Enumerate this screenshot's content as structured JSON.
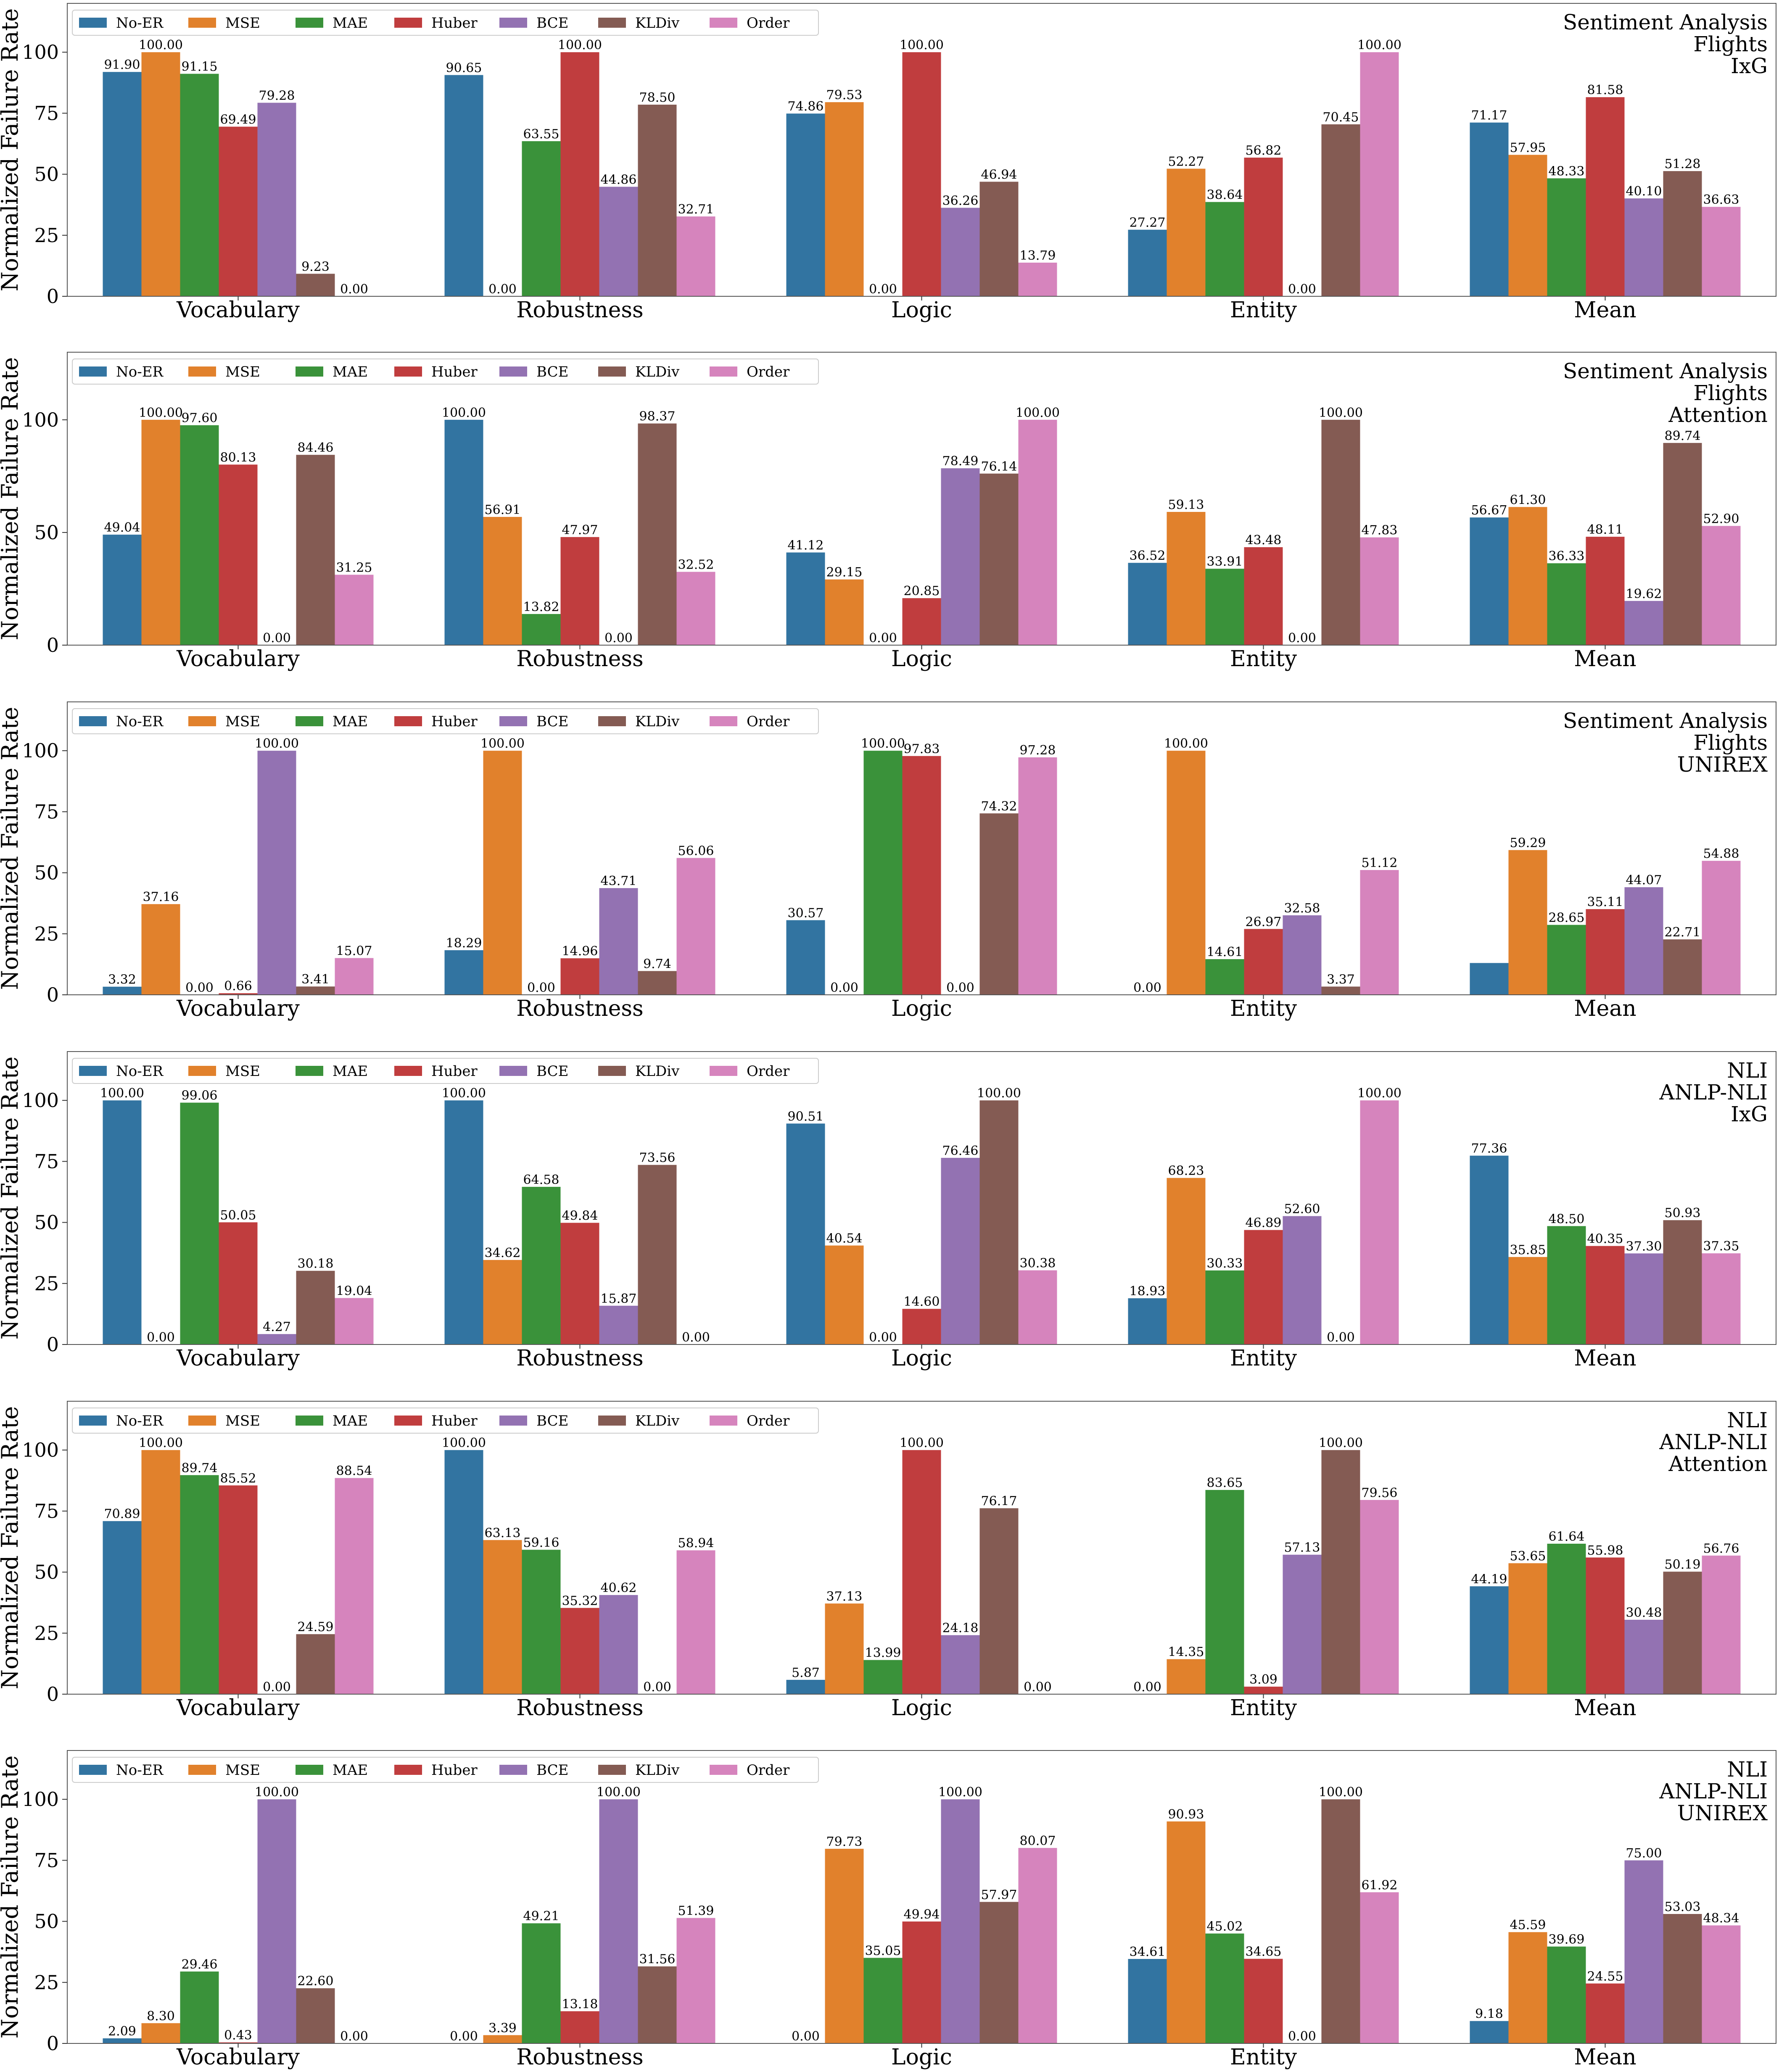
{
  "colors": {
    "No-ER": "#3274a1",
    "MSE": "#e1812c",
    "MAE": "#3a923a",
    "Huber": "#c03d3e",
    "BCE": "#9372b2",
    "KLDiv": "#845b53",
    "Order": "#d684bd"
  },
  "chart_data": [
    {
      "type": "bar",
      "title": [
        "Sentiment Analysis",
        "Flights",
        "IxG"
      ],
      "ylabel": "Normalized Failure Rate",
      "ylim": [
        0,
        120
      ],
      "yticks": [
        0,
        25,
        50,
        75,
        100
      ],
      "legend_position": "top-left",
      "categories": [
        "Vocabulary",
        "Robustness",
        "Logic",
        "Entity",
        "Mean"
      ],
      "series": [
        {
          "name": "No-ER",
          "values": [
            91.9,
            90.65,
            74.86,
            27.27,
            71.17
          ],
          "labels": [
            "91.90",
            "90.65",
            "74.86",
            "27.27",
            "71.17"
          ]
        },
        {
          "name": "MSE",
          "values": [
            100.0,
            0.0,
            79.53,
            52.27,
            57.95
          ],
          "labels": [
            "100.00",
            "0.00",
            "79.53",
            "52.27",
            "57.95"
          ]
        },
        {
          "name": "MAE",
          "values": [
            91.15,
            63.55,
            0.0,
            38.64,
            48.33
          ],
          "labels": [
            "91.15",
            "63.55",
            "0.00",
            "38.64",
            "48.33"
          ]
        },
        {
          "name": "Huber",
          "values": [
            69.49,
            100.0,
            100.0,
            56.82,
            81.58
          ],
          "labels": [
            "69.49",
            "100.00",
            "100.00",
            "56.82",
            "81.58"
          ]
        },
        {
          "name": "BCE",
          "values": [
            79.28,
            44.86,
            36.26,
            0.0,
            40.1
          ],
          "labels": [
            "79.28",
            "44.86",
            "36.26",
            "0.00",
            "40.10"
          ]
        },
        {
          "name": "KLDiv",
          "values": [
            9.23,
            78.5,
            46.94,
            70.45,
            51.28
          ],
          "labels": [
            "9.23",
            "78.50",
            "46.94",
            "70.45",
            "51.28"
          ]
        },
        {
          "name": "Order",
          "values": [
            0.0,
            32.71,
            13.79,
            100.0,
            36.63
          ],
          "labels": [
            "0.00",
            "32.71",
            "13.79",
            "100.00",
            "36.63"
          ]
        }
      ]
    },
    {
      "type": "bar",
      "title": [
        "Sentiment Analysis",
        "Flights",
        "Attention"
      ],
      "ylabel": "Normalized Failure Rate",
      "ylim": [
        0,
        130
      ],
      "yticks": [
        0,
        50,
        100
      ],
      "legend_position": "top-left",
      "categories": [
        "Vocabulary",
        "Robustness",
        "Logic",
        "Entity",
        "Mean"
      ],
      "series": [
        {
          "name": "No-ER",
          "values": [
            49.04,
            100.0,
            41.12,
            36.52,
            56.67
          ],
          "labels": [
            "49.04",
            "100.00",
            "41.12",
            "36.52",
            "56.67"
          ]
        },
        {
          "name": "MSE",
          "values": [
            100.0,
            56.91,
            29.15,
            59.13,
            61.3
          ],
          "labels": [
            "100.00",
            "56.91",
            "29.15",
            "59.13",
            "61.30"
          ]
        },
        {
          "name": "MAE",
          "values": [
            97.6,
            13.82,
            0.0,
            33.91,
            36.33
          ],
          "labels": [
            "97.60",
            "13.82",
            "0.00",
            "33.91",
            "36.33"
          ]
        },
        {
          "name": "Huber",
          "values": [
            80.13,
            47.97,
            20.85,
            43.48,
            48.11
          ],
          "labels": [
            "80.13",
            "47.97",
            "20.85",
            "43.48",
            "48.11"
          ]
        },
        {
          "name": "BCE",
          "values": [
            0.0,
            0.0,
            78.49,
            0.0,
            19.62
          ],
          "labels": [
            "0.00",
            "0.00",
            "78.49",
            "0.00",
            "19.62"
          ]
        },
        {
          "name": "KLDiv",
          "values": [
            84.46,
            98.37,
            76.14,
            100.0,
            89.74
          ],
          "labels": [
            "84.46",
            "98.37",
            "76.14",
            "100.00",
            "89.74"
          ]
        },
        {
          "name": "Order",
          "values": [
            31.25,
            32.52,
            100.0,
            47.83,
            52.9
          ],
          "labels": [
            "31.25",
            "32.52",
            "100.00",
            "47.83",
            "52.90"
          ]
        }
      ]
    },
    {
      "type": "bar",
      "title": [
        "Sentiment Analysis",
        "Flights",
        "UNIREX"
      ],
      "ylabel": "Normalized Failure Rate",
      "ylim": [
        0,
        120
      ],
      "yticks": [
        0,
        25,
        50,
        75,
        100
      ],
      "legend_position": "top-left",
      "categories": [
        "Vocabulary",
        "Robustness",
        "Logic",
        "Entity",
        "Mean"
      ],
      "series": [
        {
          "name": "No-ER",
          "values": [
            3.32,
            18.29,
            30.57,
            0.0,
            13.04
          ],
          "labels": [
            "3.32",
            "18.29",
            "30.57",
            "0.00",
            ""
          ]
        },
        {
          "name": "MSE",
          "values": [
            37.16,
            100.0,
            0.0,
            100.0,
            59.29
          ],
          "labels": [
            "37.16",
            "100.00",
            "0.00",
            "100.00",
            "59.29"
          ]
        },
        {
          "name": "MAE",
          "values": [
            0.0,
            0.0,
            100.0,
            14.61,
            28.65
          ],
          "labels": [
            "0.00",
            "0.00",
            "100.00",
            "14.61",
            "28.65"
          ]
        },
        {
          "name": "Huber",
          "values": [
            0.66,
            14.96,
            97.83,
            26.97,
            35.11
          ],
          "labels": [
            "0.66",
            "14.96",
            "97.83",
            "26.97",
            "35.11"
          ]
        },
        {
          "name": "BCE",
          "values": [
            100.0,
            43.71,
            0.0,
            32.58,
            44.07
          ],
          "labels": [
            "100.00",
            "43.71",
            "0.00",
            "32.58",
            "44.07"
          ]
        },
        {
          "name": "KLDiv",
          "values": [
            3.41,
            9.74,
            74.32,
            3.37,
            22.71
          ],
          "labels": [
            "3.41",
            "9.74",
            "74.32",
            "3.37",
            "22.71"
          ]
        },
        {
          "name": "Order",
          "values": [
            15.07,
            56.06,
            97.28,
            51.12,
            54.88
          ],
          "labels": [
            "15.07",
            "56.06",
            "97.28",
            "51.12",
            "54.88"
          ]
        }
      ]
    },
    {
      "type": "bar",
      "title": [
        "NLI",
        "ANLP-NLI",
        "IxG"
      ],
      "ylabel": "Normalized Failure Rate",
      "ylim": [
        0,
        120
      ],
      "yticks": [
        0,
        25,
        50,
        75,
        100
      ],
      "legend_position": "top-left",
      "categories": [
        "Vocabulary",
        "Robustness",
        "Logic",
        "Entity",
        "Mean"
      ],
      "series": [
        {
          "name": "No-ER",
          "values": [
            100.0,
            100.0,
            90.51,
            18.93,
            77.36
          ],
          "labels": [
            "100.00",
            "100.00",
            "90.51",
            "18.93",
            "77.36"
          ]
        },
        {
          "name": "MSE",
          "values": [
            0.0,
            34.62,
            40.54,
            68.23,
            35.85
          ],
          "labels": [
            "0.00",
            "34.62",
            "40.54",
            "68.23",
            "35.85"
          ]
        },
        {
          "name": "MAE",
          "values": [
            99.06,
            64.58,
            0.0,
            30.33,
            48.5
          ],
          "labels": [
            "99.06",
            "64.58",
            "0.00",
            "30.33",
            "48.50"
          ]
        },
        {
          "name": "Huber",
          "values": [
            50.05,
            49.84,
            14.6,
            46.89,
            40.35
          ],
          "labels": [
            "50.05",
            "49.84",
            "14.60",
            "46.89",
            "40.35"
          ]
        },
        {
          "name": "BCE",
          "values": [
            4.27,
            15.87,
            76.46,
            52.6,
            37.3
          ],
          "labels": [
            "4.27",
            "15.87",
            "76.46",
            "52.60",
            "37.30"
          ]
        },
        {
          "name": "KLDiv",
          "values": [
            30.18,
            73.56,
            100.0,
            0.0,
            50.93
          ],
          "labels": [
            "30.18",
            "73.56",
            "100.00",
            "0.00",
            "50.93"
          ]
        },
        {
          "name": "Order",
          "values": [
            19.04,
            0.0,
            30.38,
            100.0,
            37.35
          ],
          "labels": [
            "19.04",
            "0.00",
            "30.38",
            "100.00",
            "37.35"
          ]
        }
      ]
    },
    {
      "type": "bar",
      "title": [
        "NLI",
        "ANLP-NLI",
        "Attention"
      ],
      "ylabel": "Normalized Failure Rate",
      "ylim": [
        0,
        120
      ],
      "yticks": [
        0,
        25,
        50,
        75,
        100
      ],
      "legend_position": "top-left",
      "categories": [
        "Vocabulary",
        "Robustness",
        "Logic",
        "Entity",
        "Mean"
      ],
      "series": [
        {
          "name": "No-ER",
          "values": [
            70.89,
            100.0,
            5.87,
            0.0,
            44.19
          ],
          "labels": [
            "70.89",
            "100.00",
            "5.87",
            "0.00",
            "44.19"
          ]
        },
        {
          "name": "MSE",
          "values": [
            100.0,
            63.13,
            37.13,
            14.35,
            53.65
          ],
          "labels": [
            "100.00",
            "63.13",
            "37.13",
            "14.35",
            "53.65"
          ]
        },
        {
          "name": "MAE",
          "values": [
            89.74,
            59.16,
            13.99,
            83.65,
            61.64
          ],
          "labels": [
            "89.74",
            "59.16",
            "13.99",
            "83.65",
            "61.64"
          ]
        },
        {
          "name": "Huber",
          "values": [
            85.52,
            35.32,
            100.0,
            3.09,
            55.98
          ],
          "labels": [
            "85.52",
            "35.32",
            "100.00",
            "3.09",
            "55.98"
          ]
        },
        {
          "name": "BCE",
          "values": [
            0.0,
            40.62,
            24.18,
            57.13,
            30.48
          ],
          "labels": [
            "0.00",
            "40.62",
            "24.18",
            "57.13",
            "30.48"
          ]
        },
        {
          "name": "KLDiv",
          "values": [
            24.59,
            0.0,
            76.17,
            100.0,
            50.19
          ],
          "labels": [
            "24.59",
            "0.00",
            "76.17",
            "100.00",
            "50.19"
          ]
        },
        {
          "name": "Order",
          "values": [
            88.54,
            58.94,
            0.0,
            79.56,
            56.76
          ],
          "labels": [
            "88.54",
            "58.94",
            "0.00",
            "79.56",
            "56.76"
          ]
        }
      ]
    },
    {
      "type": "bar",
      "title": [
        "NLI",
        "ANLP-NLI",
        "UNIREX"
      ],
      "ylabel": "Normalized Failure Rate",
      "ylim": [
        0,
        120
      ],
      "yticks": [
        0,
        25,
        50,
        75,
        100
      ],
      "legend_position": "top-left",
      "categories": [
        "Vocabulary",
        "Robustness",
        "Logic",
        "Entity",
        "Mean"
      ],
      "series": [
        {
          "name": "No-ER",
          "values": [
            2.09,
            0.0,
            0.0,
            34.61,
            9.18
          ],
          "labels": [
            "2.09",
            "0.00",
            "0.00",
            "34.61",
            "9.18"
          ]
        },
        {
          "name": "MSE",
          "values": [
            8.3,
            3.39,
            79.73,
            90.93,
            45.59
          ],
          "labels": [
            "8.30",
            "3.39",
            "79.73",
            "90.93",
            "45.59"
          ]
        },
        {
          "name": "MAE",
          "values": [
            29.46,
            49.21,
            35.05,
            45.02,
            39.69
          ],
          "labels": [
            "29.46",
            "49.21",
            "35.05",
            "45.02",
            "39.69"
          ]
        },
        {
          "name": "Huber",
          "values": [
            0.43,
            13.18,
            49.94,
            34.65,
            24.55
          ],
          "labels": [
            "0.43",
            "13.18",
            "49.94",
            "34.65",
            "24.55"
          ]
        },
        {
          "name": "BCE",
          "values": [
            100.0,
            100.0,
            100.0,
            0.0,
            75.0
          ],
          "labels": [
            "100.00",
            "100.00",
            "100.00",
            "0.00",
            "75.00"
          ]
        },
        {
          "name": "KLDiv",
          "values": [
            22.6,
            31.56,
            57.97,
            100.0,
            53.03
          ],
          "labels": [
            "22.60",
            "31.56",
            "57.97",
            "100.00",
            "53.03"
          ]
        },
        {
          "name": "Order",
          "values": [
            0.0,
            51.39,
            80.07,
            61.92,
            48.34
          ],
          "labels": [
            "0.00",
            "51.39",
            "80.07",
            "61.92",
            "48.34"
          ]
        }
      ]
    }
  ]
}
